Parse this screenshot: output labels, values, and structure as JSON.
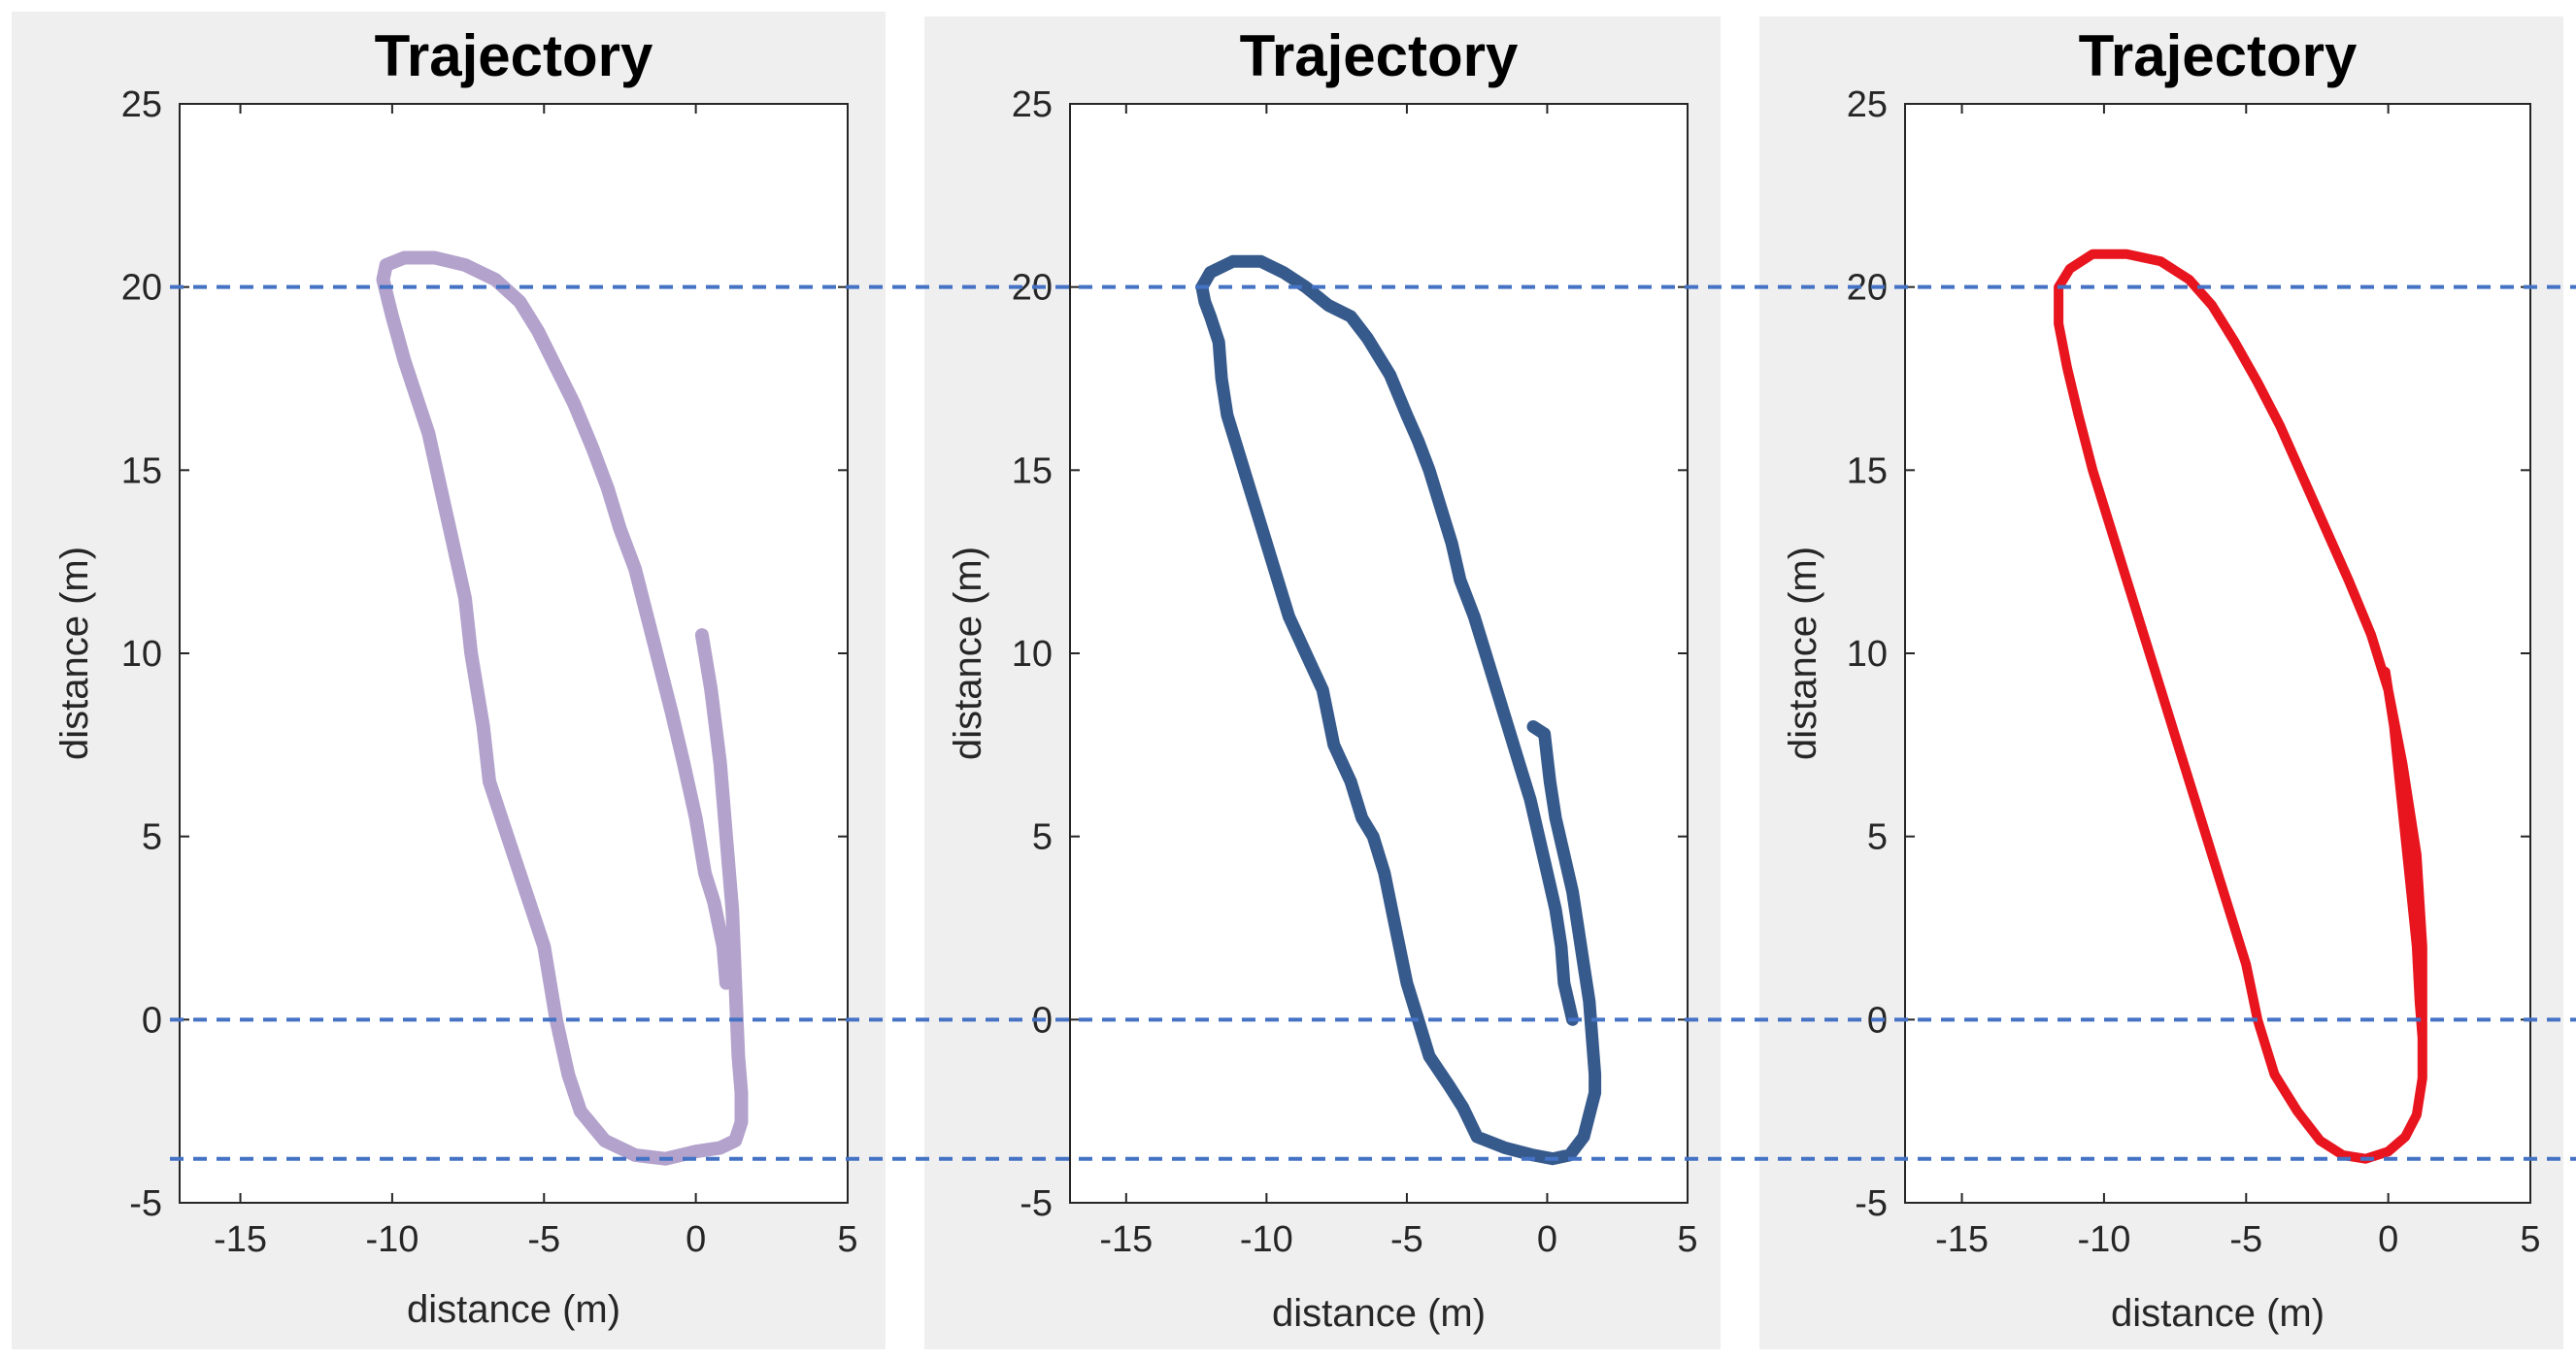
{
  "chart_data": [
    {
      "type": "line",
      "title": "Trajectory",
      "xlabel": "distance (m)",
      "ylabel": "distance (m)",
      "xlim": [
        -17,
        5
      ],
      "ylim": [
        -5,
        25
      ],
      "xticks": [
        -15,
        -10,
        -5,
        0,
        5
      ],
      "yticks": [
        25,
        20,
        15,
        10,
        5,
        0,
        -5
      ],
      "tick_labels_x": [
        "-15",
        "-10",
        "-5",
        "0",
        "5"
      ],
      "tick_labels_y": [
        "25",
        "20",
        "15",
        "10",
        "5",
        "0",
        "-5"
      ],
      "grid": false,
      "series": [
        {
          "name": "trajectory",
          "color": "#b3a2cc",
          "x": [
            0.2,
            0.5,
            0.8,
            1.0,
            1.2,
            1.3,
            1.4,
            1.5,
            1.5,
            1.3,
            0.8,
            0.0,
            -1.0,
            -2.0,
            -3.0,
            -3.8,
            -4.2,
            -4.6,
            -5.0,
            -5.6,
            -6.2,
            -6.8,
            -7.0,
            -7.4,
            -7.6,
            -8.0,
            -8.4,
            -8.8,
            -9.2,
            -9.6,
            -10.0,
            -10.3,
            -10.2,
            -9.6,
            -8.6,
            -7.6,
            -6.6,
            -5.8,
            -5.2,
            -4.6,
            -4.0,
            -3.4,
            -2.9,
            -2.5,
            -2.0,
            -1.6,
            -1.2,
            -0.8,
            -0.4,
            0.0,
            0.3,
            0.6,
            0.9,
            1.0
          ],
          "y": [
            10.5,
            9.0,
            7.0,
            5.0,
            3.0,
            1.0,
            -1.0,
            -2.0,
            -2.8,
            -3.3,
            -3.5,
            -3.6,
            -3.8,
            -3.7,
            -3.3,
            -2.5,
            -1.5,
            0.0,
            2.0,
            3.5,
            5.0,
            6.5,
            8.0,
            10.0,
            11.5,
            13.0,
            14.5,
            16.0,
            17.0,
            18.0,
            19.2,
            20.2,
            20.6,
            20.8,
            20.8,
            20.6,
            20.2,
            19.6,
            18.8,
            17.8,
            16.8,
            15.6,
            14.5,
            13.4,
            12.3,
            11.0,
            9.7,
            8.4,
            7.0,
            5.5,
            4.0,
            3.2,
            2.0,
            1.0
          ]
        }
      ]
    },
    {
      "type": "line",
      "title": "Trajectory",
      "xlabel": "distance (m)",
      "ylabel": "distance (m)",
      "xlim": [
        -17,
        5
      ],
      "ylim": [
        -5,
        25
      ],
      "xticks": [
        -15,
        -10,
        -5,
        0,
        5
      ],
      "yticks": [
        25,
        20,
        15,
        10,
        5,
        0,
        -5
      ],
      "tick_labels_x": [
        "-15",
        "-10",
        "-5",
        "0",
        "5"
      ],
      "tick_labels_y": [
        "25",
        "20",
        "15",
        "10",
        "5",
        "0",
        "-5"
      ],
      "grid": false,
      "series": [
        {
          "name": "trajectory",
          "color": "#375a8c",
          "x": [
            -0.5,
            -0.1,
            0.1,
            0.3,
            0.6,
            0.9,
            1.1,
            1.3,
            1.5,
            1.6,
            1.7,
            1.7,
            1.5,
            1.3,
            0.8,
            0.2,
            -0.5,
            -1.5,
            -2.5,
            -3.0,
            -3.5,
            -4.2,
            -4.6,
            -5.0,
            -5.4,
            -5.8,
            -6.2,
            -6.6,
            -7.0,
            -7.6,
            -8.0,
            -8.6,
            -9.2,
            -9.6,
            -10.2,
            -10.6,
            -11.0,
            -11.4,
            -11.6,
            -11.7,
            -12.0,
            -12.2,
            -12.3,
            -12.0,
            -11.2,
            -10.2,
            -9.4,
            -8.6,
            -7.8,
            -7.0,
            -6.4,
            -5.6,
            -5.0,
            -4.6,
            -4.2,
            -3.8,
            -3.4,
            -3.1,
            -2.6,
            -2.2,
            -1.8,
            -1.4,
            -1.0,
            -0.6,
            -0.3,
            0.0,
            0.3,
            0.5,
            0.6,
            0.9
          ],
          "y": [
            8.0,
            7.8,
            6.5,
            5.5,
            4.5,
            3.5,
            2.5,
            1.5,
            0.5,
            -0.5,
            -1.5,
            -2.0,
            -2.6,
            -3.2,
            -3.7,
            -3.8,
            -3.7,
            -3.5,
            -3.2,
            -2.4,
            -1.8,
            -1.0,
            0.0,
            1.0,
            2.5,
            4.0,
            5.0,
            5.5,
            6.5,
            7.5,
            9.0,
            10.0,
            11.0,
            12.0,
            13.5,
            14.5,
            15.5,
            16.5,
            17.5,
            18.5,
            19.2,
            19.6,
            20.0,
            20.4,
            20.7,
            20.7,
            20.4,
            20.0,
            19.5,
            19.2,
            18.6,
            17.6,
            16.5,
            15.8,
            15.0,
            14.0,
            13.0,
            12.0,
            11.0,
            10.0,
            9.0,
            8.0,
            7.0,
            6.0,
            5.0,
            4.0,
            3.0,
            2.0,
            1.0,
            0.0
          ]
        }
      ]
    },
    {
      "type": "line",
      "title": "Trajectory",
      "xlabel": "distance (m)",
      "ylabel": "distance (m)",
      "xlim": [
        -17,
        5
      ],
      "ylim": [
        -5,
        25
      ],
      "xticks": [
        -15,
        -10,
        -5,
        0,
        5
      ],
      "yticks": [
        25,
        20,
        15,
        10,
        5,
        0,
        -5
      ],
      "tick_labels_x": [
        "-15",
        "-10",
        "-5",
        "0",
        "5"
      ],
      "tick_labels_y": [
        "25",
        "20",
        "15",
        "10",
        "5",
        "0",
        "-5"
      ],
      "grid": false,
      "series": [
        {
          "name": "trajectory",
          "color": "#e8141e",
          "x": [
            -0.1,
            0.2,
            0.4,
            0.6,
            0.8,
            1.0,
            1.1,
            1.2,
            1.2,
            1.0,
            0.6,
            0.0,
            -0.8,
            -1.6,
            -2.4,
            -3.2,
            -4.0,
            -4.6,
            -5.0,
            -5.6,
            -6.2,
            -6.8,
            -7.4,
            -8.0,
            -8.6,
            -9.2,
            -9.8,
            -10.4,
            -10.9,
            -11.3,
            -11.6,
            -11.6,
            -11.2,
            -10.4,
            -9.2,
            -8.0,
            -7.0,
            -6.2,
            -5.4,
            -4.6,
            -3.8,
            -3.0,
            -2.2,
            -1.4,
            -0.6,
            0.0,
            0.5,
            1.0,
            1.2,
            1.2
          ],
          "y": [
            9.5,
            8.0,
            6.5,
            5.0,
            3.5,
            2.0,
            0.5,
            -0.5,
            -1.6,
            -2.6,
            -3.2,
            -3.6,
            -3.8,
            -3.7,
            -3.3,
            -2.5,
            -1.5,
            0.0,
            1.5,
            3.0,
            4.5,
            6.0,
            7.5,
            9.0,
            10.5,
            12.0,
            13.5,
            15.0,
            16.5,
            17.8,
            19.0,
            20.0,
            20.5,
            20.9,
            20.9,
            20.7,
            20.2,
            19.5,
            18.5,
            17.4,
            16.2,
            14.8,
            13.4,
            12.0,
            10.5,
            9.0,
            7.0,
            4.5,
            2.0,
            -1.0
          ]
        }
      ]
    }
  ],
  "reference_lines": {
    "style": "dashed",
    "color": "#4472c4",
    "y_values": [
      20,
      0,
      -3.8
    ]
  }
}
